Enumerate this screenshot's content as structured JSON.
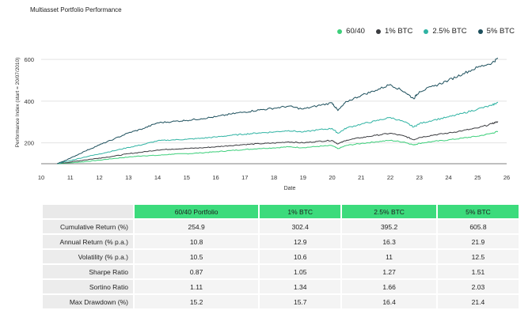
{
  "title": "Multiasset Portfolio Performance",
  "legend": [
    {
      "label": "60/40",
      "color": "#3ccf7a"
    },
    {
      "label": "1% BTC",
      "color": "#3a3b3f"
    },
    {
      "label": "2.5% BTC",
      "color": "#2fb3a3"
    },
    {
      "label": "5% BTC",
      "color": "#1c4f5c"
    }
  ],
  "chart_data": {
    "type": "line",
    "title": "Multiasset Portfolio Performance",
    "xlabel": "Date",
    "ylabel": "Performance Index (start = 20/07/2010)",
    "x_ticks": [
      "10",
      "11",
      "12",
      "13",
      "14",
      "15",
      "16",
      "17",
      "18",
      "19",
      "20",
      "21",
      "22",
      "23",
      "24",
      "25",
      "26"
    ],
    "y_ticks": [
      200,
      400,
      600
    ],
    "xlim": [
      10,
      26
    ],
    "ylim": [
      100,
      650
    ],
    "grid": "horizontal",
    "legend_position": "top-right",
    "series": [
      {
        "name": "60/40",
        "color": "#3ccf7a",
        "x": [
          10.55,
          11,
          11.5,
          12,
          12.5,
          13,
          13.5,
          14,
          14.5,
          15,
          15.5,
          16,
          16.5,
          17,
          17.5,
          18,
          18.5,
          19,
          19.5,
          20,
          20.2,
          20.5,
          21,
          21.5,
          22,
          22.5,
          22.8,
          23,
          23.5,
          24,
          24.5,
          25,
          25.5,
          25.7
        ],
        "y": [
          100,
          104,
          110,
          117,
          125,
          132,
          138,
          140,
          146,
          148,
          152,
          157,
          163,
          168,
          173,
          176,
          181,
          177,
          183,
          187,
          172,
          188,
          197,
          205,
          212,
          203,
          190,
          198,
          207,
          214,
          223,
          232,
          246,
          254.9
        ]
      },
      {
        "name": "1% BTC",
        "color": "#3a3b3f",
        "x": [
          10.55,
          11,
          11.5,
          12,
          12.5,
          13,
          13.5,
          14,
          14.5,
          15,
          15.5,
          16,
          16.5,
          17,
          17.5,
          18,
          18.5,
          19,
          19.5,
          20,
          20.2,
          20.5,
          21,
          21.5,
          22,
          22.5,
          22.8,
          23,
          23.5,
          24,
          24.5,
          25,
          25.5,
          25.7
        ],
        "y": [
          100,
          108,
          118,
          127,
          136,
          148,
          156,
          166,
          170,
          173,
          176,
          181,
          187,
          192,
          196,
          199,
          205,
          200,
          207,
          212,
          195,
          213,
          225,
          236,
          246,
          232,
          215,
          226,
          238,
          247,
          259,
          271,
          292,
          302.4
        ]
      },
      {
        "name": "2.5% BTC",
        "color": "#2fb3a3",
        "x": [
          10.55,
          11,
          11.5,
          12,
          12.5,
          13,
          13.5,
          14,
          14.5,
          15,
          15.5,
          16,
          16.5,
          17,
          17.5,
          18,
          18.5,
          19,
          19.5,
          20,
          20.2,
          20.5,
          21,
          21.5,
          22,
          22.5,
          22.8,
          23,
          23.5,
          24,
          24.5,
          25,
          25.5,
          25.7
        ],
        "y": [
          100,
          115,
          132,
          147,
          162,
          178,
          192,
          210,
          214,
          217,
          222,
          228,
          236,
          242,
          248,
          252,
          259,
          252,
          262,
          269,
          246,
          272,
          290,
          305,
          322,
          300,
          276,
          292,
          310,
          324,
          342,
          362,
          380,
          395.2
        ]
      },
      {
        "name": "5% BTC",
        "color": "#1c4f5c",
        "x": [
          10.55,
          11,
          11.5,
          12,
          12.5,
          13,
          13.5,
          14,
          14.5,
          15,
          15.5,
          16,
          16.5,
          17,
          17.5,
          18,
          18.5,
          19,
          19.5,
          20,
          20.2,
          20.5,
          21,
          21.5,
          22,
          22.5,
          22.8,
          23,
          23.5,
          24,
          24.5,
          25,
          25.5,
          25.7
        ],
        "y": [
          100,
          126,
          160,
          190,
          218,
          248,
          268,
          296,
          302,
          308,
          316,
          325,
          338,
          348,
          358,
          366,
          376,
          362,
          378,
          392,
          355,
          398,
          428,
          452,
          480,
          444,
          412,
          446,
          472,
          500,
          532,
          562,
          584,
          605.8
        ]
      }
    ]
  },
  "table": {
    "headers": [
      "",
      "60/40 Portfolio",
      "1% BTC",
      "2.5% BTC",
      "5% BTC"
    ],
    "rows": [
      {
        "label": "Cumulative Return (%)",
        "values": [
          "254.9",
          "302.4",
          "395.2",
          "605.8"
        ]
      },
      {
        "label": "Annual Return (% p.a.)",
        "values": [
          "10.8",
          "12.9",
          "16.3",
          "21.9"
        ]
      },
      {
        "label": "Volatility (% p.a.)",
        "values": [
          "10.5",
          "10.6",
          "11",
          "12.5"
        ]
      },
      {
        "label": "Sharpe Ratio",
        "values": [
          "0.87",
          "1.05",
          "1.27",
          "1.51"
        ]
      },
      {
        "label": "Sortino Ratio",
        "values": [
          "1.11",
          "1.34",
          "1.66",
          "2.03"
        ]
      },
      {
        "label": "Max Drawdown (%)",
        "values": [
          "15.2",
          "15.7",
          "16.4",
          "21.4"
        ]
      }
    ]
  }
}
